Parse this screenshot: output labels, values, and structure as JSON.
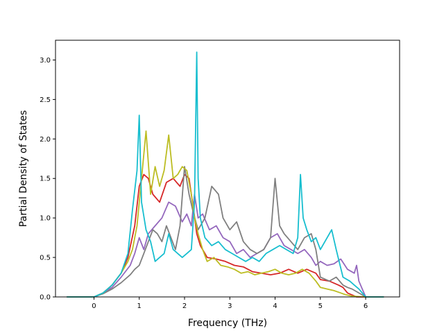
{
  "chart_data": {
    "type": "line",
    "title": "",
    "xlabel": "Frequency (THz)",
    "ylabel": "Partial Density of States",
    "xlim": [
      -0.85,
      6.75
    ],
    "ylim": [
      0.0,
      3.25
    ],
    "xticks": [
      0,
      1,
      2,
      3,
      4,
      5,
      6
    ],
    "yticks": [
      0.0,
      0.5,
      1.0,
      1.5,
      2.0,
      2.5,
      3.0
    ],
    "xtick_labels": [
      "0",
      "1",
      "2",
      "3",
      "4",
      "5",
      "6"
    ],
    "ytick_labels": [
      "0.0",
      "0.5",
      "1.0",
      "1.5",
      "2.0",
      "2.5",
      "3.0"
    ],
    "grid": false,
    "legend": "none",
    "series": [
      {
        "color": "#d62728",
        "x": [
          -0.6,
          0.0,
          0.2,
          0.4,
          0.6,
          0.75,
          0.9,
          1.0,
          1.1,
          1.2,
          1.3,
          1.45,
          1.6,
          1.75,
          1.9,
          2.0,
          2.1,
          2.2,
          2.27,
          2.35,
          2.5,
          2.7,
          2.9,
          3.1,
          3.3,
          3.5,
          3.7,
          3.9,
          4.1,
          4.3,
          4.5,
          4.7,
          4.9,
          5.0,
          5.2,
          5.4,
          5.5,
          5.6,
          5.8,
          6.0,
          6.4
        ],
        "y": [
          0,
          0,
          0.05,
          0.15,
          0.3,
          0.5,
          0.9,
          1.4,
          1.55,
          1.5,
          1.3,
          1.2,
          1.45,
          1.5,
          1.4,
          1.55,
          1.5,
          1.1,
          0.8,
          0.65,
          0.5,
          0.48,
          0.45,
          0.4,
          0.38,
          0.32,
          0.3,
          0.28,
          0.3,
          0.35,
          0.3,
          0.35,
          0.3,
          0.22,
          0.2,
          0.15,
          0.12,
          0.05,
          0.0,
          0,
          0
        ]
      },
      {
        "color": "#9467bd",
        "x": [
          -0.6,
          0.0,
          0.2,
          0.4,
          0.6,
          0.8,
          0.9,
          1.0,
          1.1,
          1.2,
          1.35,
          1.5,
          1.65,
          1.8,
          1.95,
          2.05,
          2.15,
          2.22,
          2.3,
          2.4,
          2.55,
          2.7,
          2.85,
          3.0,
          3.15,
          3.3,
          3.45,
          3.6,
          3.75,
          3.9,
          4.05,
          4.2,
          4.35,
          4.5,
          4.65,
          4.8,
          4.9,
          5.0,
          5.15,
          5.3,
          5.45,
          5.6,
          5.75,
          5.8,
          5.85,
          6.0,
          6.4
        ],
        "y": [
          0,
          0,
          0.05,
          0.12,
          0.25,
          0.4,
          0.55,
          0.75,
          0.6,
          0.8,
          0.9,
          1.0,
          1.2,
          1.15,
          0.95,
          1.05,
          0.9,
          1.3,
          1.0,
          1.05,
          0.85,
          0.9,
          0.75,
          0.7,
          0.55,
          0.6,
          0.5,
          0.55,
          0.6,
          0.75,
          0.8,
          0.65,
          0.6,
          0.55,
          0.6,
          0.5,
          0.4,
          0.45,
          0.4,
          0.42,
          0.48,
          0.35,
          0.3,
          0.4,
          0.2,
          0,
          0
        ]
      },
      {
        "color": "#7f7f7f",
        "x": [
          -0.6,
          0.0,
          0.2,
          0.4,
          0.6,
          0.8,
          0.9,
          1.0,
          1.1,
          1.2,
          1.3,
          1.4,
          1.5,
          1.6,
          1.7,
          1.8,
          1.9,
          2.0,
          2.1,
          2.2,
          2.3,
          2.45,
          2.6,
          2.75,
          2.85,
          3.0,
          3.15,
          3.3,
          3.45,
          3.6,
          3.75,
          3.9,
          4.0,
          4.1,
          4.2,
          4.35,
          4.5,
          4.65,
          4.8,
          4.9,
          5.0,
          5.2,
          5.35,
          5.5,
          5.6,
          5.7,
          6.0,
          6.4
        ],
        "y": [
          0,
          0,
          0.04,
          0.1,
          0.18,
          0.28,
          0.35,
          0.4,
          0.55,
          0.7,
          0.85,
          0.8,
          0.7,
          0.9,
          0.75,
          0.6,
          0.9,
          1.65,
          1.3,
          1.05,
          0.85,
          1.0,
          1.4,
          1.3,
          1.0,
          0.85,
          0.95,
          0.7,
          0.6,
          0.55,
          0.6,
          0.75,
          1.5,
          0.9,
          0.8,
          0.7,
          0.6,
          0.75,
          0.8,
          0.6,
          0.25,
          0.2,
          0.25,
          0.15,
          0.12,
          0.1,
          0,
          0
        ]
      },
      {
        "color": "#bcbd22",
        "x": [
          -0.6,
          0.0,
          0.2,
          0.4,
          0.6,
          0.75,
          0.85,
          0.95,
          1.05,
          1.15,
          1.25,
          1.35,
          1.45,
          1.55,
          1.65,
          1.75,
          1.85,
          1.95,
          2.05,
          2.15,
          2.22,
          2.3,
          2.4,
          2.5,
          2.65,
          2.8,
          2.95,
          3.1,
          3.25,
          3.4,
          3.55,
          3.7,
          3.85,
          4.0,
          4.15,
          4.3,
          4.45,
          4.6,
          4.75,
          4.9,
          5.0,
          5.15,
          5.3,
          5.45,
          5.55,
          5.7,
          6.0,
          6.4
        ],
        "y": [
          0,
          0,
          0.05,
          0.15,
          0.3,
          0.45,
          0.6,
          0.9,
          1.5,
          2.1,
          1.3,
          1.65,
          1.4,
          1.6,
          2.05,
          1.5,
          1.55,
          1.65,
          1.6,
          1.3,
          1.0,
          0.8,
          0.6,
          0.45,
          0.5,
          0.4,
          0.38,
          0.35,
          0.3,
          0.32,
          0.28,
          0.3,
          0.32,
          0.35,
          0.3,
          0.28,
          0.3,
          0.35,
          0.3,
          0.2,
          0.12,
          0.1,
          0.08,
          0.05,
          0.03,
          0.01,
          0,
          0
        ]
      },
      {
        "color": "#17becf",
        "x": [
          -0.6,
          0.0,
          0.2,
          0.4,
          0.6,
          0.75,
          0.85,
          0.95,
          1.0,
          1.05,
          1.15,
          1.25,
          1.35,
          1.45,
          1.55,
          1.65,
          1.75,
          1.85,
          1.95,
          2.05,
          2.15,
          2.22,
          2.27,
          2.3,
          2.35,
          2.45,
          2.6,
          2.75,
          2.9,
          3.05,
          3.2,
          3.35,
          3.5,
          3.65,
          3.8,
          3.95,
          4.1,
          4.25,
          4.4,
          4.5,
          4.56,
          4.62,
          4.7,
          4.8,
          4.9,
          5.0,
          5.1,
          5.25,
          5.35,
          5.5,
          5.65,
          5.75,
          5.85,
          6.0,
          6.4
        ],
        "y": [
          0,
          0,
          0.05,
          0.15,
          0.3,
          0.55,
          1.1,
          1.6,
          2.3,
          1.2,
          0.85,
          0.7,
          0.45,
          0.5,
          0.55,
          0.8,
          0.6,
          0.55,
          0.5,
          0.55,
          0.6,
          1.2,
          3.1,
          1.5,
          1.0,
          0.75,
          0.65,
          0.7,
          0.6,
          0.55,
          0.5,
          0.45,
          0.5,
          0.45,
          0.55,
          0.6,
          0.65,
          0.6,
          0.55,
          0.75,
          1.55,
          1.0,
          0.85,
          0.7,
          0.75,
          0.6,
          0.7,
          0.85,
          0.6,
          0.25,
          0.2,
          0.15,
          0.1,
          0,
          0
        ]
      }
    ]
  }
}
